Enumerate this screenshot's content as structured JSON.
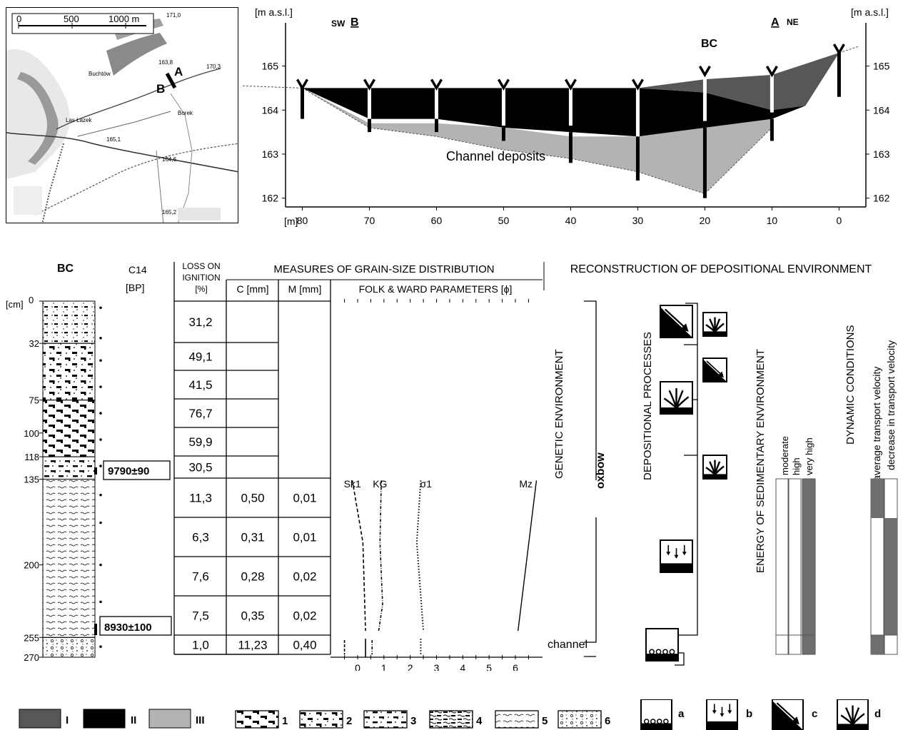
{
  "map": {
    "scale_ticks": [
      "0",
      "500",
      "1000 m"
    ],
    "labels": [
      "171,0",
      "170,3",
      "Buchtów",
      "163,8",
      "Las Łazek",
      "Borek",
      "165,1",
      "164,6",
      "165,2"
    ],
    "point_a": "A",
    "point_b": "B"
  },
  "profile": {
    "yunit_left": "[m a.s.l.]",
    "yunit_right": "[m a.s.l.]",
    "xunit": "[m]",
    "sw_prefix": "SW",
    "sw_letter": "B",
    "ne_letter": "A",
    "ne_suffix": "NE",
    "bc_label": "BC",
    "channel_label": "Channel deposits",
    "chart_data": {
      "type": "area",
      "x_ticks": [
        80,
        70,
        60,
        50,
        40,
        30,
        20,
        10,
        0
      ],
      "y_ticks": [
        165,
        164,
        163,
        162
      ],
      "xlim": [
        82.5,
        -4
      ],
      "ylim": [
        161.8,
        166.5
      ],
      "units": [
        {
          "name": "III",
          "top": [
            [
              80,
              164.5
            ],
            [
              70,
              163.7
            ],
            [
              60,
              163.7
            ],
            [
              50,
              163.6
            ],
            [
              40,
              163.4
            ],
            [
              30,
              163.4
            ],
            [
              20,
              163.7
            ],
            [
              10,
              164.0
            ]
          ],
          "bottom": [
            [
              80,
              164.5
            ],
            [
              70,
              163.6
            ],
            [
              60,
              163.4
            ],
            [
              50,
              163.1
            ],
            [
              40,
              162.9
            ],
            [
              30,
              162.6
            ],
            [
              20,
              162.1
            ],
            [
              10,
              163.6
            ]
          ]
        },
        {
          "name": "II",
          "top": [
            [
              80,
              164.5
            ],
            [
              70,
              164.5
            ],
            [
              60,
              164.5
            ],
            [
              50,
              164.5
            ],
            [
              40,
              164.5
            ],
            [
              30,
              164.5
            ],
            [
              20,
              164.4
            ],
            [
              10,
              164.0
            ],
            [
              5,
              164.1
            ]
          ],
          "bottom": [
            [
              80,
              164.5
            ],
            [
              70,
              163.8
            ],
            [
              60,
              163.8
            ],
            [
              50,
              163.6
            ],
            [
              40,
              163.5
            ],
            [
              30,
              163.4
            ],
            [
              20,
              163.6
            ],
            [
              10,
              163.8
            ],
            [
              5,
              164.1
            ]
          ]
        },
        {
          "name": "I",
          "top": [
            [
              30,
              164.5
            ],
            [
              20,
              164.7
            ],
            [
              10,
              164.8
            ],
            [
              0,
              165.3
            ]
          ],
          "bottom": [
            [
              30,
              164.5
            ],
            [
              20,
              164.4
            ],
            [
              10,
              164.0
            ],
            [
              5,
              164.1
            ],
            [
              0,
              165.3
            ]
          ]
        }
      ],
      "boreholes": [
        {
          "x": 80,
          "top": 164.5,
          "bottom": 163.8
        },
        {
          "x": 70,
          "top": 164.5,
          "bottom": 163.5
        },
        {
          "x": 60,
          "top": 164.5,
          "bottom": 163.5
        },
        {
          "x": 50,
          "top": 164.5,
          "bottom": 163.3
        },
        {
          "x": 40,
          "top": 164.5,
          "bottom": 162.8
        },
        {
          "x": 30,
          "top": 164.5,
          "bottom": 162.4
        },
        {
          "x": 20,
          "top": 164.8,
          "bottom": 162.0
        },
        {
          "x": 10,
          "top": 164.8,
          "bottom": 163.3
        },
        {
          "x": 0,
          "top": 165.3,
          "bottom": 164.3
        }
      ]
    }
  },
  "log": {
    "bc_title": "BC",
    "c14_title": "C14",
    "c14_unit": "[BP]",
    "depth_unit": "[cm]",
    "depth_ticks": [
      "0",
      "32",
      "75",
      "100",
      "118",
      "135",
      "200",
      "255",
      "270"
    ],
    "c14_dates": [
      "9790±90",
      "8930±100"
    ],
    "loi_title": [
      "LOSS ON",
      "IGNITION",
      "[%]"
    ],
    "gs_title": "MEASURES OF GRAIN-SIZE DISTRIBUTION",
    "c_title": "C [mm]",
    "m_title": "M [mm]",
    "fw_title": "FOLK & WARD PARAMETERS [ϕ]",
    "loi_values": [
      "31,2",
      "49,1",
      "41,5",
      "76,7",
      "59,9",
      "30,5",
      "11,3",
      "6,3",
      "7,6",
      "7,5",
      "1,0"
    ],
    "c_values": [
      "0,50",
      "0,31",
      "0,28",
      "0,35",
      "11,23"
    ],
    "m_values": [
      "0,01",
      "0,01",
      "0,02",
      "0,02",
      "0,40"
    ],
    "fw_labels": [
      "Sk1",
      "KG",
      "σ1",
      "Mz"
    ],
    "fw_x_ticks": [
      "0",
      "1",
      "2",
      "3",
      "4",
      "5",
      "6"
    ],
    "fw_data": {
      "Sk1": [
        [
          -0.2,
          136
        ],
        [
          0.2,
          183
        ],
        [
          0.3,
          250
        ]
      ],
      "KG": [
        [
          0.9,
          136
        ],
        [
          0.85,
          183
        ],
        [
          0.95,
          230
        ],
        [
          0.8,
          250
        ]
      ],
      "sigma1": [
        [
          2.4,
          136
        ],
        [
          2.25,
          183
        ],
        [
          2.5,
          250
        ]
      ],
      "Mz": [
        [
          6.8,
          136
        ],
        [
          6.1,
          250
        ]
      ],
      "channel": {
        "Sk1": 0.3,
        "KG": 0.55,
        "sigma1": 2.4,
        "Mz": -0.5
      }
    }
  },
  "recon": {
    "title": "RECONSTRUCTION OF DEPOSITIONAL ENVIRONMENT",
    "genetic": "GENETIC ENVIRONMENT",
    "oxbow": "oxbow",
    "channel": "channel",
    "processes": "DEPOSITIONAL PROCESSES",
    "energy": "ENERGY OF SEDIMENTARY ENVIRONMENT",
    "energy_levels": [
      "moderate",
      "high",
      "very high"
    ],
    "dynamic": "DYNAMIC CONDITIONS",
    "dynamic_1": "domination of the above-average transport velocity",
    "dynamic_2": "decrease in transport velocity"
  },
  "legend": {
    "units": [
      "I",
      "II",
      "III"
    ],
    "litho": [
      "1",
      "2",
      "3",
      "4",
      "5",
      "6"
    ],
    "process": [
      "a",
      "b",
      "c",
      "d"
    ]
  },
  "colors": {
    "unit_I": "#575757",
    "unit_II": "#000000",
    "unit_III": "#b3b3b3",
    "energy_fill": "#6e6e6e"
  }
}
